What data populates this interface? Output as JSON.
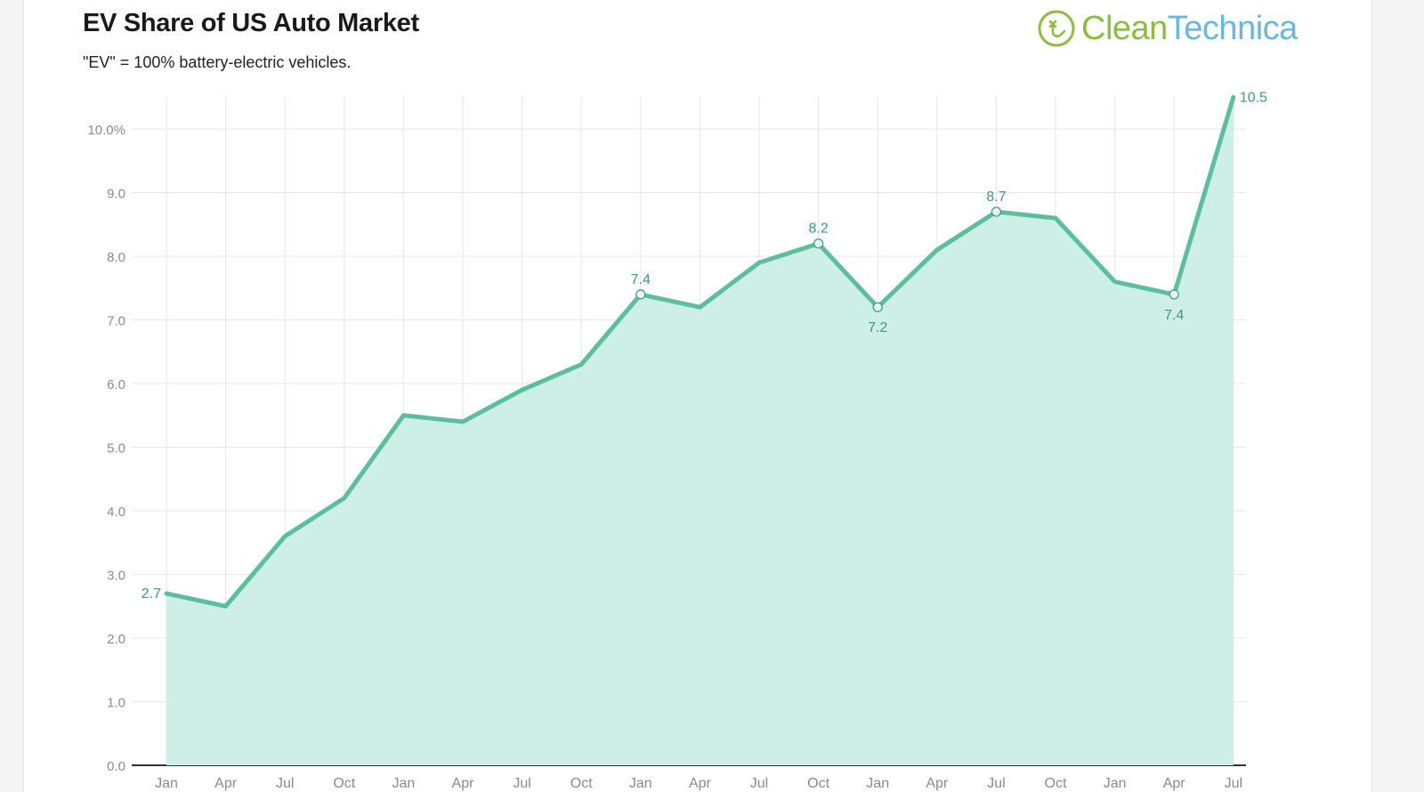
{
  "header": {
    "title": "EV Share of US Auto Market",
    "subtitle": "\"EV\" = 100% battery-electric vehicles."
  },
  "brand": {
    "name_part1": "Clean",
    "name_part2": "Technica",
    "icon": "plug-leaf-icon",
    "colors": {
      "green": "#8bbd3e",
      "blue": "#69b7de"
    }
  },
  "chart_data": {
    "type": "area",
    "title": "EV Share of US Auto Market",
    "subtitle": "\"EV\" = 100% battery-electric vehicles.",
    "xlabel": "",
    "ylabel": "",
    "ylim": [
      0,
      10.5
    ],
    "y_ticks": [
      "0.0",
      "1.0",
      "2.0",
      "3.0",
      "4.0",
      "5.0",
      "6.0",
      "7.0",
      "8.0",
      "9.0",
      "10.0%"
    ],
    "x": [
      "Jan",
      "Apr",
      "Jul",
      "Oct",
      "Jan",
      "Apr",
      "Jul",
      "Oct",
      "Jan",
      "Apr",
      "Jul",
      "Oct",
      "Jan",
      "Apr",
      "Jul",
      "Oct",
      "Jan",
      "Apr",
      "Jul"
    ],
    "values": [
      2.7,
      2.5,
      3.6,
      4.2,
      5.5,
      5.4,
      5.9,
      6.3,
      7.4,
      7.2,
      7.9,
      8.2,
      7.2,
      8.1,
      8.7,
      8.6,
      7.6,
      7.4,
      10.5
    ],
    "labels": [
      {
        "index": 0,
        "text": "2.7"
      },
      {
        "index": 8,
        "text": "7.4"
      },
      {
        "index": 11,
        "text": "8.2"
      },
      {
        "index": 12,
        "text": "7.2"
      },
      {
        "index": 14,
        "text": "8.7"
      },
      {
        "index": 17,
        "text": "7.4"
      },
      {
        "index": 18,
        "text": "10.5"
      }
    ],
    "grid": true,
    "legend": "none",
    "colors": {
      "line": "#5bbf9e",
      "fill": "#cdefe6",
      "label": "#3a9a7e",
      "grid": "#e6e6e6",
      "tick": "#8a8a8a"
    }
  }
}
